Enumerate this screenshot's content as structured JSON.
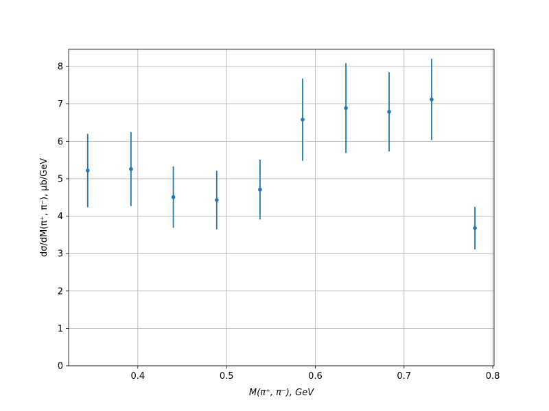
{
  "chart_data": {
    "type": "errorbar",
    "x_label": "M(π⁺, π⁻), GeV",
    "y_label": "dσ/dM(π⁺, π⁻), μb/GeV",
    "x": [
      0.3435,
      0.3923,
      0.44,
      0.4889,
      0.5377,
      0.5857,
      0.6345,
      0.6832,
      0.7311,
      0.7799
    ],
    "values": [
      5.22,
      5.26,
      4.51,
      4.43,
      4.71,
      6.58,
      6.89,
      6.79,
      7.12,
      3.68
    ],
    "errors": [
      0.98,
      0.99,
      0.82,
      0.78,
      0.8,
      1.1,
      1.2,
      1.06,
      1.09,
      0.57
    ],
    "color": "#1f77b4",
    "xlim": [
      0.322,
      0.8015
    ],
    "ylim": [
      0,
      8.46
    ],
    "xticks": [
      0.4,
      0.5,
      0.6,
      0.7,
      0.8
    ],
    "yticks": [
      0,
      1,
      2,
      3,
      4,
      5,
      6,
      7,
      8
    ],
    "grid": true
  }
}
